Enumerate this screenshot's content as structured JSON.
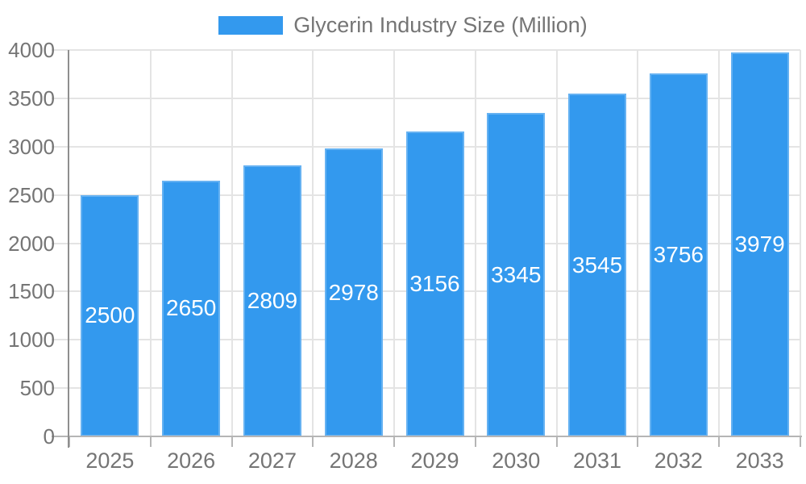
{
  "chart_data": {
    "type": "bar",
    "title": "Glycerin Industry Size (Million)",
    "legend_label": "Glycerin Industry Size (Million)",
    "legend_position": "top-center",
    "categories": [
      "2025",
      "2026",
      "2027",
      "2028",
      "2029",
      "2030",
      "2031",
      "2032",
      "2033"
    ],
    "series": [
      {
        "name": "Glycerin Industry Size (Million)",
        "values": [
          2500,
          2650,
          2809,
          2978,
          3156,
          3345,
          3545,
          3756,
          3979
        ]
      }
    ],
    "xlabel": "",
    "ylabel": "",
    "ylim": [
      0,
      4000
    ],
    "ytick_step": 500,
    "ytick_labels": [
      "0",
      "500",
      "1000",
      "1500",
      "2000",
      "2500",
      "3000",
      "3500",
      "4000"
    ],
    "grid": "horizontal and vertical gridlines",
    "value_labels": "white, centered inside bars",
    "colors": {
      "bar": "#3399EE",
      "bar_value_label": "#FFFFFF",
      "axis_text": "#757575",
      "gridline": "#E4E4E4",
      "axis_line": "#8F8F8F",
      "baseline": "#B5B5B5",
      "background": "#FFFFFF"
    }
  }
}
